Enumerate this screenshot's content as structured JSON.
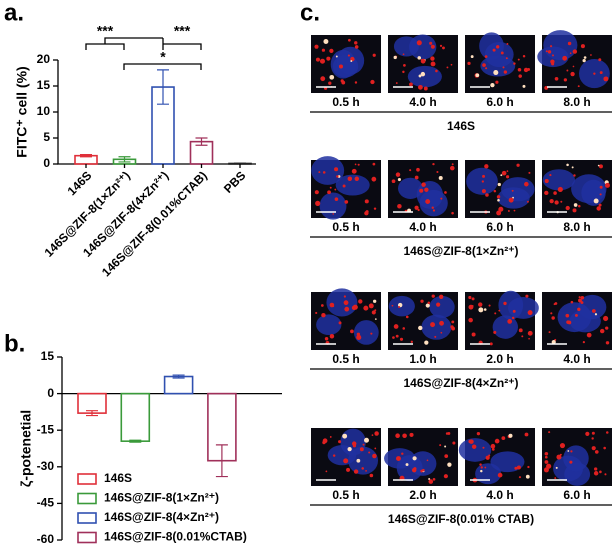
{
  "panel_labels": [
    "a.",
    "b.",
    "c."
  ],
  "chart_data": [
    {
      "type": "bar",
      "ylabel": "FITC⁺ cell (%)",
      "categories": [
        "146S",
        "146S@ZIF-8(1×Zn²⁺)",
        "146S@ZIF-8(4×Zn²⁺)",
        "146S@ZIF-8(0.01%CTAB)",
        "PBS"
      ],
      "values": [
        1.6,
        0.9,
        14.8,
        4.3,
        0.1
      ],
      "errors": [
        0.2,
        0.5,
        3.3,
        0.7,
        0.05
      ],
      "colors": [
        "#e0303a",
        "#3a9a3a",
        "#3050b0",
        "#a0305a",
        "#222222"
      ],
      "ylim": [
        0,
        20
      ],
      "yticks": [
        0,
        5,
        10,
        15,
        20
      ],
      "annotations": [
        "***",
        "***",
        "*"
      ]
    },
    {
      "type": "bar",
      "ylabel": "ζ-potenetial",
      "categories": [
        "146S",
        "146S@ZIF-8(1×Zn²⁺)",
        "146S@ZIF-8(4×Zn²⁺)",
        "146S@ZIF-8(0.01%CTAB)"
      ],
      "values": [
        -8,
        -19.5,
        7,
        -27.5
      ],
      "errors": [
        1,
        0.4,
        0.6,
        6.5
      ],
      "colors": [
        "#e0303a",
        "#3a9a3a",
        "#3050b0",
        "#a0305a"
      ],
      "ylim": [
        -60,
        15
      ],
      "yticks": [
        15,
        0,
        -15,
        -30,
        -45,
        -60
      ],
      "legend": "lower left"
    }
  ],
  "microscopy": {
    "groups": [
      {
        "name": "146S",
        "times": [
          "0.5 h",
          "4.0 h",
          "6.0 h",
          "8.0 h"
        ]
      },
      {
        "name": "146S@ZIF-8(1×Zn²⁺)",
        "times": [
          "0.5 h",
          "4.0 h",
          "6.0 h",
          "8.0 h"
        ]
      },
      {
        "name": "146S@ZIF-8(4×Zn²⁺)",
        "times": [
          "0.5 h",
          "1.0 h",
          "2.0 h",
          "4.0 h"
        ]
      },
      {
        "name": "146S@ZIF-8(0.01% CTAB)",
        "times": [
          "0.5 h",
          "2.0 h",
          "4.0 h",
          "6.0 h"
        ]
      }
    ]
  }
}
